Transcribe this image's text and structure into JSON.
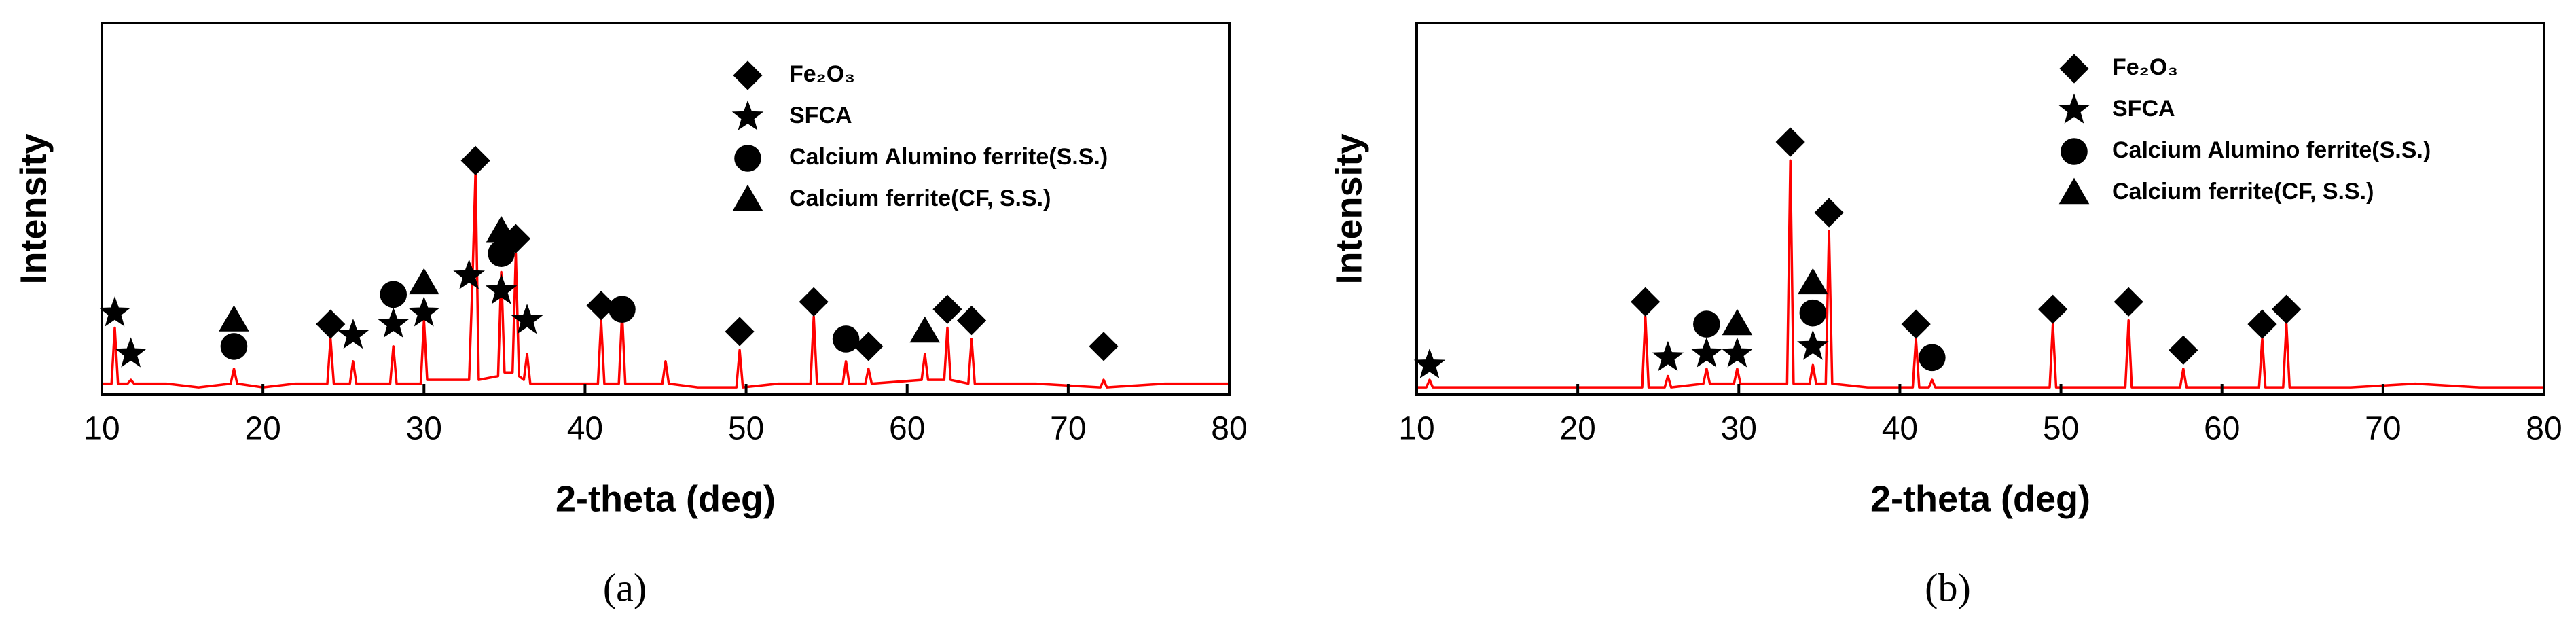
{
  "chart_data": [
    {
      "type": "line",
      "panel_label": "(a)",
      "x_label": "2-theta (deg)",
      "y_label": "Intensity",
      "xlim": [
        10,
        80
      ],
      "xticks": [
        10,
        20,
        30,
        40,
        50,
        60,
        70,
        80
      ],
      "ylim": [
        0,
        100
      ],
      "series": [
        {
          "color": "#ff0000",
          "x": [
            10,
            10.6,
            10.8,
            11.0,
            11.6,
            11.8,
            12.0,
            14,
            16,
            18.0,
            18.2,
            18.4,
            20,
            22,
            24.0,
            24.2,
            24.4,
            25.4,
            25.6,
            25.8,
            27.9,
            28.1,
            28.3,
            29.8,
            30.0,
            30.2,
            32,
            32.8,
            33.0,
            33.2,
            33.4,
            34.6,
            34.8,
            35.0,
            35.5,
            35.7,
            35.9,
            36.2,
            36.4,
            36.6,
            38,
            40.8,
            41.0,
            41.2,
            42.1,
            42.3,
            42.5,
            44.8,
            45.0,
            45.2,
            47,
            49.4,
            49.6,
            49.8,
            52,
            54.0,
            54.2,
            54.4,
            56.0,
            56.2,
            56.4,
            57.4,
            57.6,
            57.8,
            60.9,
            61.1,
            61.3,
            62.3,
            62.5,
            62.7,
            63.8,
            64.0,
            64.2,
            68,
            72.0,
            72.2,
            72.4,
            76,
            80
          ],
          "values": [
            3,
            3,
            18,
            3,
            3,
            4,
            3,
            3,
            2,
            3,
            7,
            3,
            2,
            3,
            3,
            15,
            3,
            3,
            9,
            3,
            3,
            13,
            3,
            3,
            20,
            4,
            4,
            4,
            29,
            60,
            4,
            5,
            33,
            6,
            6,
            38,
            5,
            4,
            11,
            3,
            3,
            3,
            20,
            3,
            3,
            22,
            3,
            3,
            9,
            3,
            2,
            2,
            12,
            2,
            3,
            3,
            21,
            3,
            3,
            9,
            3,
            3,
            7,
            3,
            4,
            11,
            4,
            4,
            18,
            4,
            3,
            15,
            3,
            3,
            2,
            4,
            2,
            3,
            3
          ]
        }
      ],
      "legend": [
        {
          "symbol": "diamond",
          "label": "Fe₂O₃"
        },
        {
          "symbol": "star",
          "label": "SFCA"
        },
        {
          "symbol": "circle",
          "label": "Calcium Alumino ferrite(S.S.)"
        },
        {
          "symbol": "triangle",
          "label": "Calcium ferrite(CF, S.S.)"
        }
      ],
      "markers": [
        {
          "symbol": "star",
          "x": 10.8,
          "y": 22
        },
        {
          "symbol": "star",
          "x": 11.8,
          "y": 11
        },
        {
          "symbol": "triangle",
          "x": 18.2,
          "y": 20
        },
        {
          "symbol": "circle",
          "x": 18.2,
          "y": 13
        },
        {
          "symbol": "diamond",
          "x": 24.2,
          "y": 19
        },
        {
          "symbol": "star",
          "x": 25.6,
          "y": 16
        },
        {
          "symbol": "circle",
          "x": 28.1,
          "y": 27
        },
        {
          "symbol": "star",
          "x": 28.1,
          "y": 19
        },
        {
          "symbol": "triangle",
          "x": 30.0,
          "y": 30
        },
        {
          "symbol": "star",
          "x": 30.0,
          "y": 22
        },
        {
          "symbol": "diamond",
          "x": 33.2,
          "y": 63
        },
        {
          "symbol": "star",
          "x": 32.8,
          "y": 32
        },
        {
          "symbol": "triangle",
          "x": 34.8,
          "y": 44
        },
        {
          "symbol": "circle",
          "x": 34.8,
          "y": 38
        },
        {
          "symbol": "star",
          "x": 34.8,
          "y": 28
        },
        {
          "symbol": "diamond",
          "x": 35.7,
          "y": 42
        },
        {
          "symbol": "star",
          "x": 36.4,
          "y": 20
        },
        {
          "symbol": "diamond",
          "x": 41.0,
          "y": 24
        },
        {
          "symbol": "circle",
          "x": 42.3,
          "y": 23
        },
        {
          "symbol": "diamond",
          "x": 49.6,
          "y": 17
        },
        {
          "symbol": "diamond",
          "x": 54.2,
          "y": 25
        },
        {
          "symbol": "circle",
          "x": 56.2,
          "y": 15
        },
        {
          "symbol": "diamond",
          "x": 57.6,
          "y": 13
        },
        {
          "symbol": "triangle",
          "x": 61.1,
          "y": 17
        },
        {
          "symbol": "diamond",
          "x": 62.5,
          "y": 23
        },
        {
          "symbol": "diamond",
          "x": 64.0,
          "y": 20
        },
        {
          "symbol": "diamond",
          "x": 72.2,
          "y": 13
        }
      ]
    },
    {
      "type": "line",
      "panel_label": "(b)",
      "x_label": "2-theta (deg)",
      "y_label": "Intensity",
      "xlim": [
        10,
        80
      ],
      "xticks": [
        10,
        20,
        30,
        40,
        50,
        60,
        70,
        80
      ],
      "ylim": [
        0,
        100
      ],
      "series": [
        {
          "color": "#ff0000",
          "x": [
            10,
            10.6,
            10.8,
            11.0,
            14,
            18,
            22,
            24.0,
            24.2,
            24.4,
            25.4,
            25.6,
            25.8,
            27.8,
            28.0,
            28.2,
            29.7,
            29.9,
            30.1,
            32,
            33.0,
            33.2,
            33.4,
            34.4,
            34.6,
            34.8,
            35.4,
            35.6,
            35.8,
            38,
            40.8,
            41.0,
            41.2,
            41.8,
            42.0,
            42.2,
            46,
            49.3,
            49.5,
            49.7,
            52,
            54.0,
            54.2,
            54.4,
            57.4,
            57.6,
            57.8,
            60,
            62.3,
            62.5,
            62.7,
            63.8,
            64.0,
            64.2,
            68,
            72,
            76,
            80
          ],
          "values": [
            2,
            2,
            4,
            2,
            2,
            2,
            2,
            2,
            21,
            2,
            2,
            5,
            2,
            3,
            7,
            3,
            3,
            7,
            3,
            3,
            3,
            63,
            3,
            3,
            8,
            3,
            3,
            44,
            3,
            2,
            2,
            15,
            2,
            2,
            4,
            2,
            2,
            2,
            19,
            2,
            2,
            2,
            20,
            2,
            2,
            7,
            2,
            2,
            2,
            15,
            2,
            2,
            19,
            2,
            2,
            3,
            2,
            2
          ]
        }
      ],
      "legend": [
        {
          "symbol": "diamond",
          "label": "Fe₂O₃"
        },
        {
          "symbol": "star",
          "label": "SFCA"
        },
        {
          "symbol": "circle",
          "label": "Calcium Alumino ferrite(S.S.)"
        },
        {
          "symbol": "triangle",
          "label": "Calcium ferrite(CF, S.S.)"
        }
      ],
      "markers": [
        {
          "symbol": "star",
          "x": 10.8,
          "y": 8
        },
        {
          "symbol": "diamond",
          "x": 24.2,
          "y": 25
        },
        {
          "symbol": "star",
          "x": 25.6,
          "y": 10
        },
        {
          "symbol": "circle",
          "x": 28.0,
          "y": 19
        },
        {
          "symbol": "star",
          "x": 28.0,
          "y": 11
        },
        {
          "symbol": "triangle",
          "x": 29.9,
          "y": 19
        },
        {
          "symbol": "star",
          "x": 29.9,
          "y": 11
        },
        {
          "symbol": "diamond",
          "x": 33.2,
          "y": 68
        },
        {
          "symbol": "triangle",
          "x": 34.6,
          "y": 30
        },
        {
          "symbol": "circle",
          "x": 34.6,
          "y": 22
        },
        {
          "symbol": "star",
          "x": 34.6,
          "y": 13
        },
        {
          "symbol": "diamond",
          "x": 35.6,
          "y": 49
        },
        {
          "symbol": "diamond",
          "x": 41.0,
          "y": 19
        },
        {
          "symbol": "circle",
          "x": 42.0,
          "y": 10
        },
        {
          "symbol": "diamond",
          "x": 49.5,
          "y": 23
        },
        {
          "symbol": "diamond",
          "x": 54.2,
          "y": 25
        },
        {
          "symbol": "diamond",
          "x": 57.6,
          "y": 12
        },
        {
          "symbol": "diamond",
          "x": 62.5,
          "y": 19
        },
        {
          "symbol": "diamond",
          "x": 64.0,
          "y": 23
        }
      ]
    }
  ]
}
